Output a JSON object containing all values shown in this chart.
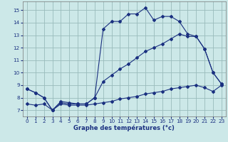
{
  "title": "Graphe des températures (°c)",
  "bg_color": "#cce8e8",
  "line_color": "#1a3080",
  "grid_color": "#99bbbb",
  "xlim": [
    -0.5,
    23.5
  ],
  "ylim": [
    6.5,
    15.7
  ],
  "xticks": [
    0,
    1,
    2,
    3,
    4,
    5,
    6,
    7,
    8,
    9,
    10,
    11,
    12,
    13,
    14,
    15,
    16,
    17,
    18,
    19,
    20,
    21,
    22,
    23
  ],
  "yticks": [
    7,
    8,
    9,
    10,
    11,
    12,
    13,
    14,
    15
  ],
  "curve1_x": [
    0,
    1,
    2,
    3,
    4,
    5,
    6,
    7,
    8,
    9,
    10,
    11,
    12,
    13,
    14,
    15,
    16,
    17,
    18,
    19,
    20,
    21,
    22,
    23
  ],
  "curve1_y": [
    8.7,
    8.4,
    8.0,
    7.0,
    7.7,
    7.6,
    7.5,
    7.5,
    8.0,
    13.5,
    14.1,
    14.1,
    14.7,
    14.7,
    15.2,
    14.2,
    14.5,
    14.5,
    14.1,
    13.1,
    12.9,
    11.9,
    10.0,
    9.1
  ],
  "curve2_x": [
    0,
    1,
    2,
    3,
    4,
    5,
    6,
    7,
    8,
    9,
    10,
    11,
    12,
    13,
    14,
    15,
    16,
    17,
    18,
    19,
    20,
    21,
    22,
    23
  ],
  "curve2_y": [
    8.7,
    8.4,
    8.0,
    7.0,
    7.6,
    7.5,
    7.5,
    7.5,
    8.0,
    9.3,
    9.8,
    10.3,
    10.7,
    11.2,
    11.7,
    12.0,
    12.3,
    12.7,
    13.1,
    12.9,
    12.9,
    11.9,
    10.0,
    9.1
  ],
  "curve3_x": [
    0,
    1,
    2,
    3,
    4,
    5,
    6,
    7,
    8,
    9,
    10,
    11,
    12,
    13,
    14,
    15,
    16,
    17,
    18,
    19,
    20,
    21,
    22,
    23
  ],
  "curve3_y": [
    7.5,
    7.4,
    7.5,
    7.0,
    7.5,
    7.4,
    7.4,
    7.4,
    7.5,
    7.6,
    7.7,
    7.9,
    8.0,
    8.1,
    8.3,
    8.4,
    8.5,
    8.7,
    8.8,
    8.9,
    9.0,
    8.8,
    8.5,
    9.0
  ]
}
